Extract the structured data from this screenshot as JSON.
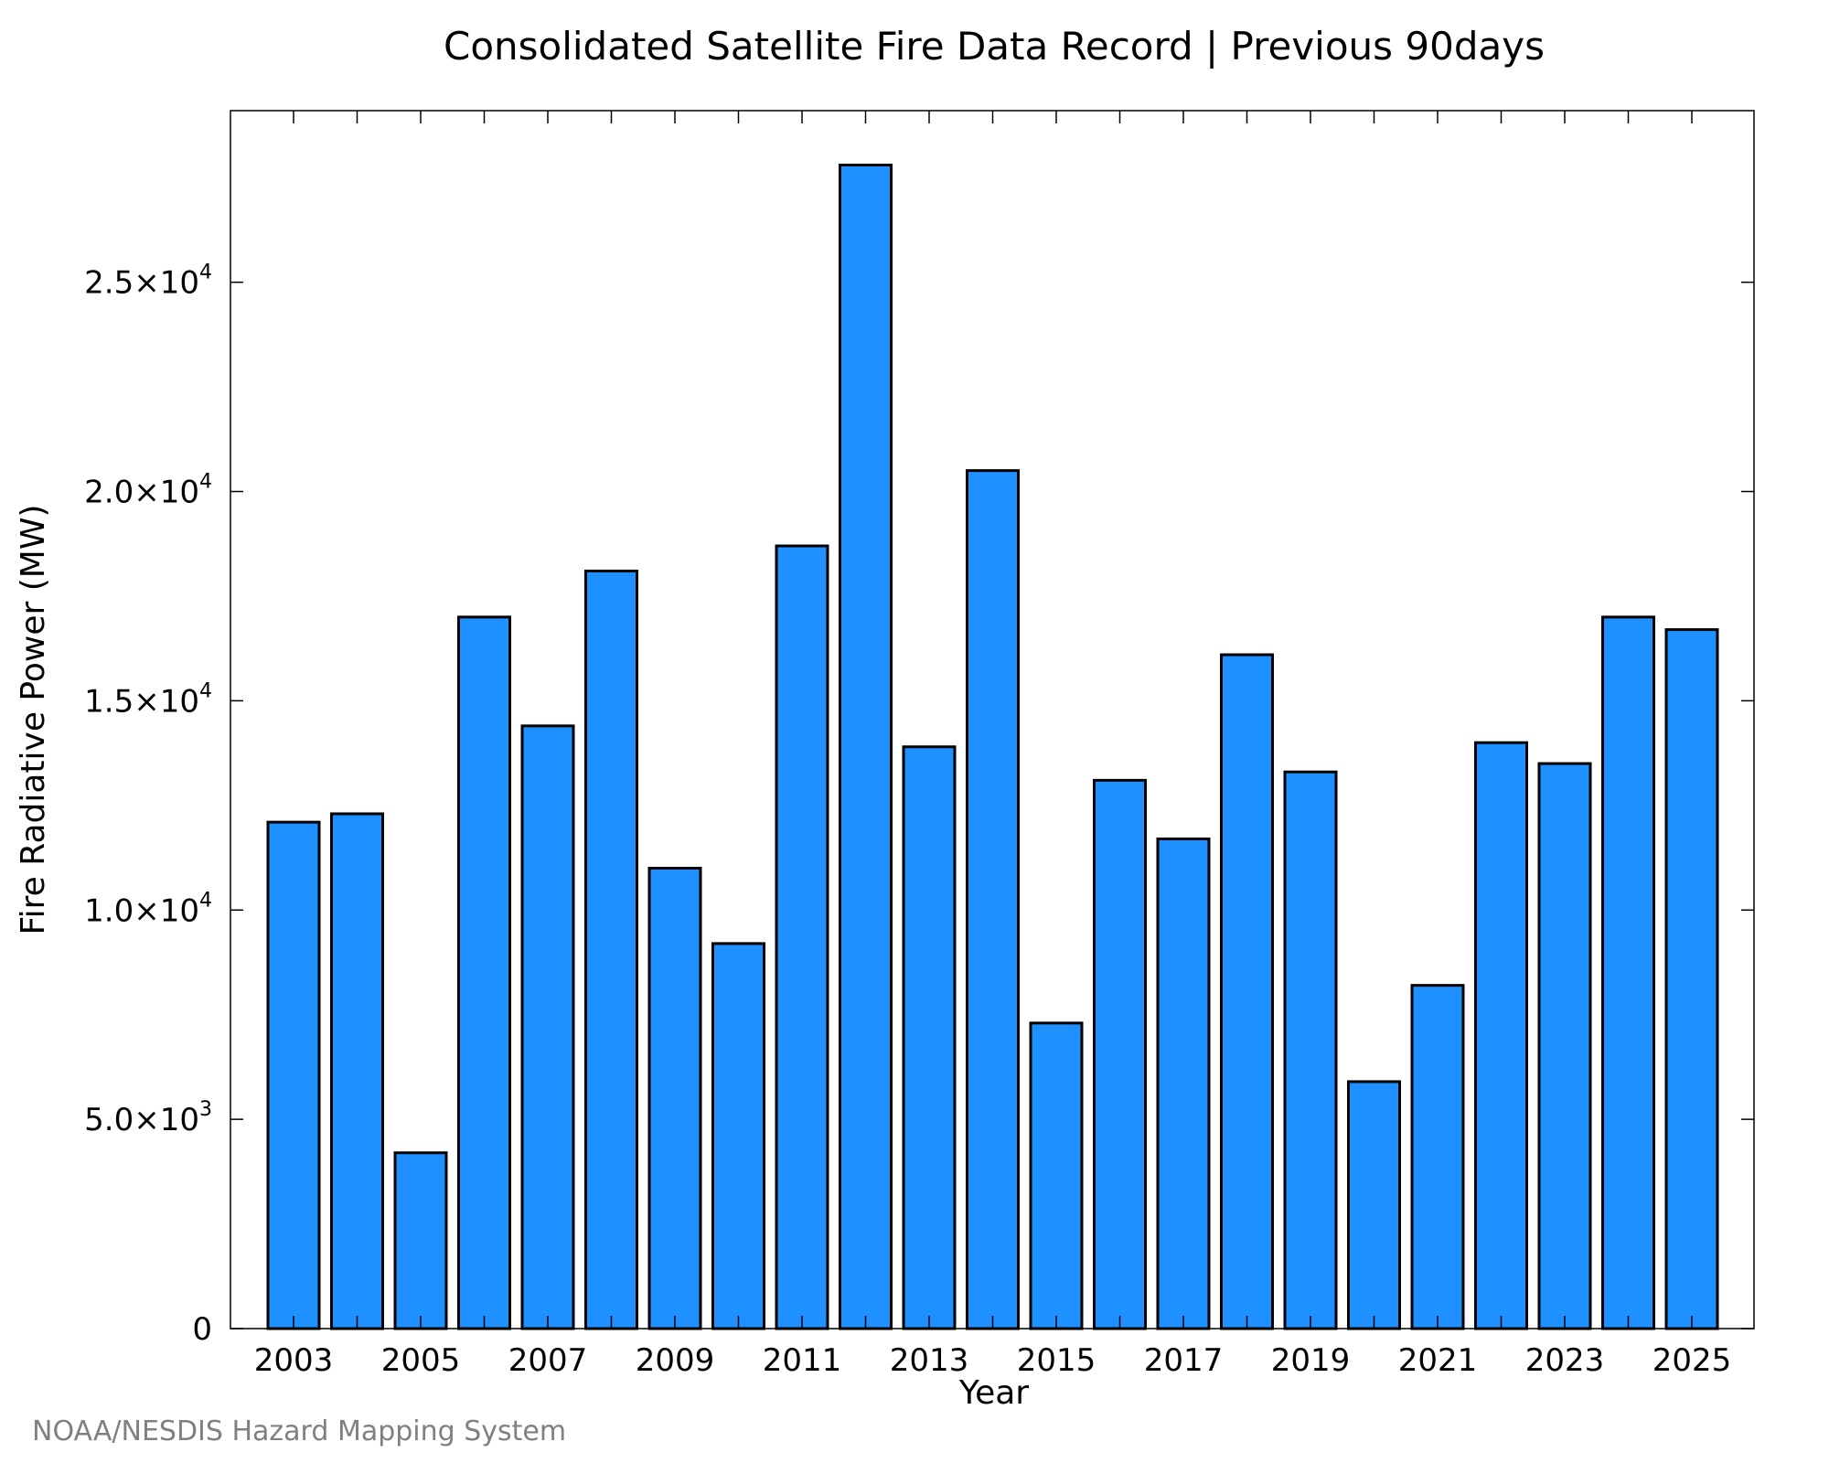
{
  "chart_data": {
    "type": "bar",
    "title": "Consolidated Satellite Fire Data Record | Previous 90days",
    "xlabel": "Year",
    "ylabel": "Fire Radiative Power (MW)",
    "categories": [
      2003,
      2004,
      2005,
      2006,
      2007,
      2008,
      2009,
      2010,
      2011,
      2012,
      2013,
      2014,
      2015,
      2016,
      2017,
      2018,
      2019,
      2020,
      2021,
      2022,
      2023,
      2024,
      2025
    ],
    "values": [
      12100,
      12300,
      4200,
      17000,
      14400,
      18100,
      11000,
      9200,
      18700,
      27800,
      13900,
      20500,
      7300,
      13100,
      11700,
      16100,
      13300,
      5900,
      8200,
      14000,
      13500,
      17000,
      16700
    ],
    "ylim": [
      0,
      29100
    ],
    "x_tick_labels": [
      "2003",
      "2005",
      "2007",
      "2009",
      "2011",
      "2013",
      "2015",
      "2017",
      "2019",
      "2021",
      "2023",
      "2025"
    ],
    "y_ticks": [
      {
        "value": 0,
        "mantissa": "0",
        "exp": ""
      },
      {
        "value": 5000,
        "mantissa": "5.0×10",
        "exp": "3"
      },
      {
        "value": 10000,
        "mantissa": "1.0×10",
        "exp": "4"
      },
      {
        "value": 15000,
        "mantissa": "1.5×10",
        "exp": "4"
      },
      {
        "value": 20000,
        "mantissa": "2.0×10",
        "exp": "4"
      },
      {
        "value": 25000,
        "mantissa": "2.5×10",
        "exp": "4"
      }
    ],
    "grid": false,
    "bar_color": "#1e90ff",
    "bar_edge_color": "#000000"
  },
  "footer": {
    "credit": "NOAA/NESDIS Hazard Mapping System",
    "credit_color": "#808080"
  }
}
